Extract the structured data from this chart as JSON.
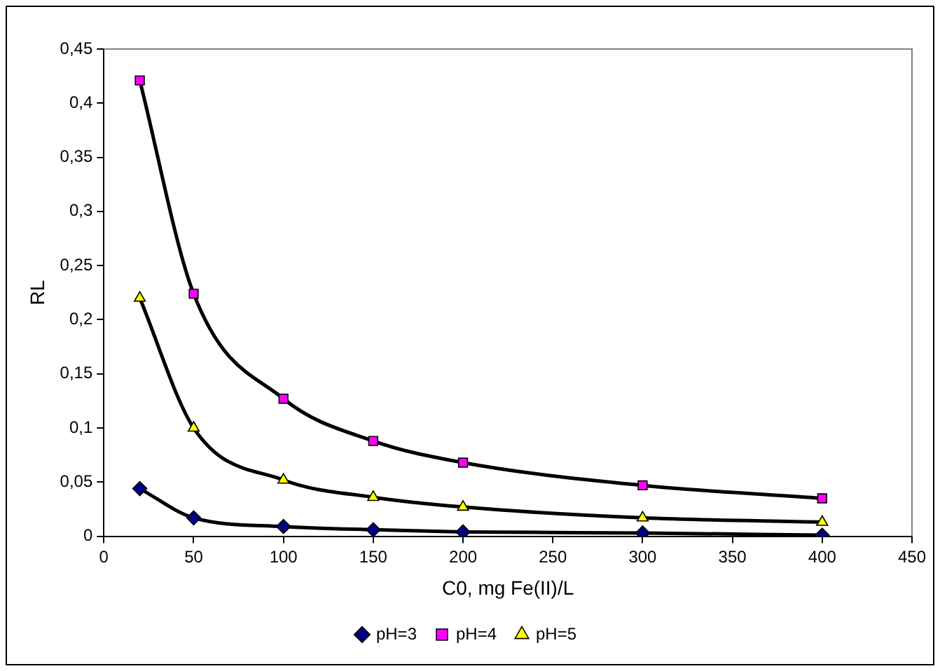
{
  "chart_data": {
    "type": "line",
    "xlabel": "C0, mg Fe(II)/L",
    "ylabel": "RL",
    "x": [
      20,
      50,
      100,
      150,
      200,
      300,
      400
    ],
    "series": [
      {
        "name": "pH=3",
        "color": "#000080",
        "marker": "diamond",
        "values": [
          0.044,
          0.017,
          0.009,
          0.006,
          0.004,
          0.003,
          0.001
        ]
      },
      {
        "name": "pH=4",
        "color": "#ff00ff",
        "marker": "square",
        "values": [
          0.421,
          0.224,
          0.127,
          0.088,
          0.068,
          0.047,
          0.035
        ]
      },
      {
        "name": "pH=5",
        "color": "#ffff00",
        "marker": "triangle",
        "values": [
          0.22,
          0.1,
          0.052,
          0.036,
          0.027,
          0.017,
          0.013
        ]
      }
    ],
    "xlim": [
      0,
      450
    ],
    "xticks": [
      0,
      50,
      100,
      150,
      200,
      250,
      300,
      350,
      400,
      450
    ],
    "ylim": [
      0,
      0.45
    ],
    "yticks": [
      0,
      {
        "value": 0.05,
        "label": "0,05"
      },
      {
        "value": 0.1,
        "label": "0,1"
      },
      {
        "value": 0.15,
        "label": "0,15"
      },
      {
        "value": 0.2,
        "label": "0,2"
      },
      {
        "value": 0.25,
        "label": "0,25"
      },
      {
        "value": 0.3,
        "label": "0,3"
      },
      {
        "value": 0.35,
        "label": "0,35"
      },
      {
        "value": 0.4,
        "label": "0,4"
      },
      {
        "value": 0.45,
        "label": "0,45"
      }
    ],
    "grid": false,
    "legend": "bottom",
    "line_style": "solid"
  }
}
